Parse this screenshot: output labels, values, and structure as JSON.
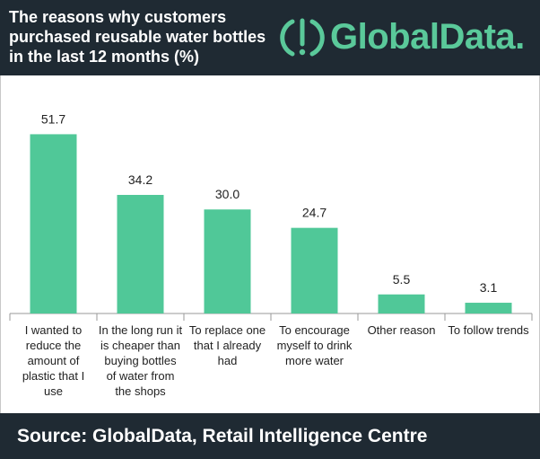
{
  "header": {
    "title_lines": [
      "The reasons why customers",
      "purchased reusable water bottles",
      "in the last 12 months (%)"
    ]
  },
  "logo": {
    "text": "GlobalData."
  },
  "colors": {
    "bar": "#50c898",
    "header_bg": "#1f2a33",
    "logo_green": "#5ac99a"
  },
  "chart_data": {
    "type": "bar",
    "title": "The reasons why customers purchased reusable water bottles in the last 12 months (%)",
    "categories": [
      [
        "I wanted to",
        "reduce the",
        "amount of",
        "plastic that I",
        "use"
      ],
      [
        "In the long run it",
        "is cheaper than",
        "buying bottles",
        "of water from",
        "the shops"
      ],
      [
        "To replace one",
        "that I already",
        "had"
      ],
      [
        "To encourage",
        "myself to drink",
        "more water"
      ],
      [
        "Other reason"
      ],
      [
        "To follow trends"
      ]
    ],
    "values": [
      51.7,
      34.2,
      30.0,
      24.7,
      5.5,
      3.1
    ],
    "value_labels": [
      "51.7",
      "34.2",
      "30.0",
      "24.7",
      "5.5",
      "3.1"
    ],
    "ylim": [
      0,
      60
    ],
    "grid": false,
    "legend": "none"
  },
  "footer": {
    "source": "Source: GlobalData, Retail Intelligence Centre"
  }
}
